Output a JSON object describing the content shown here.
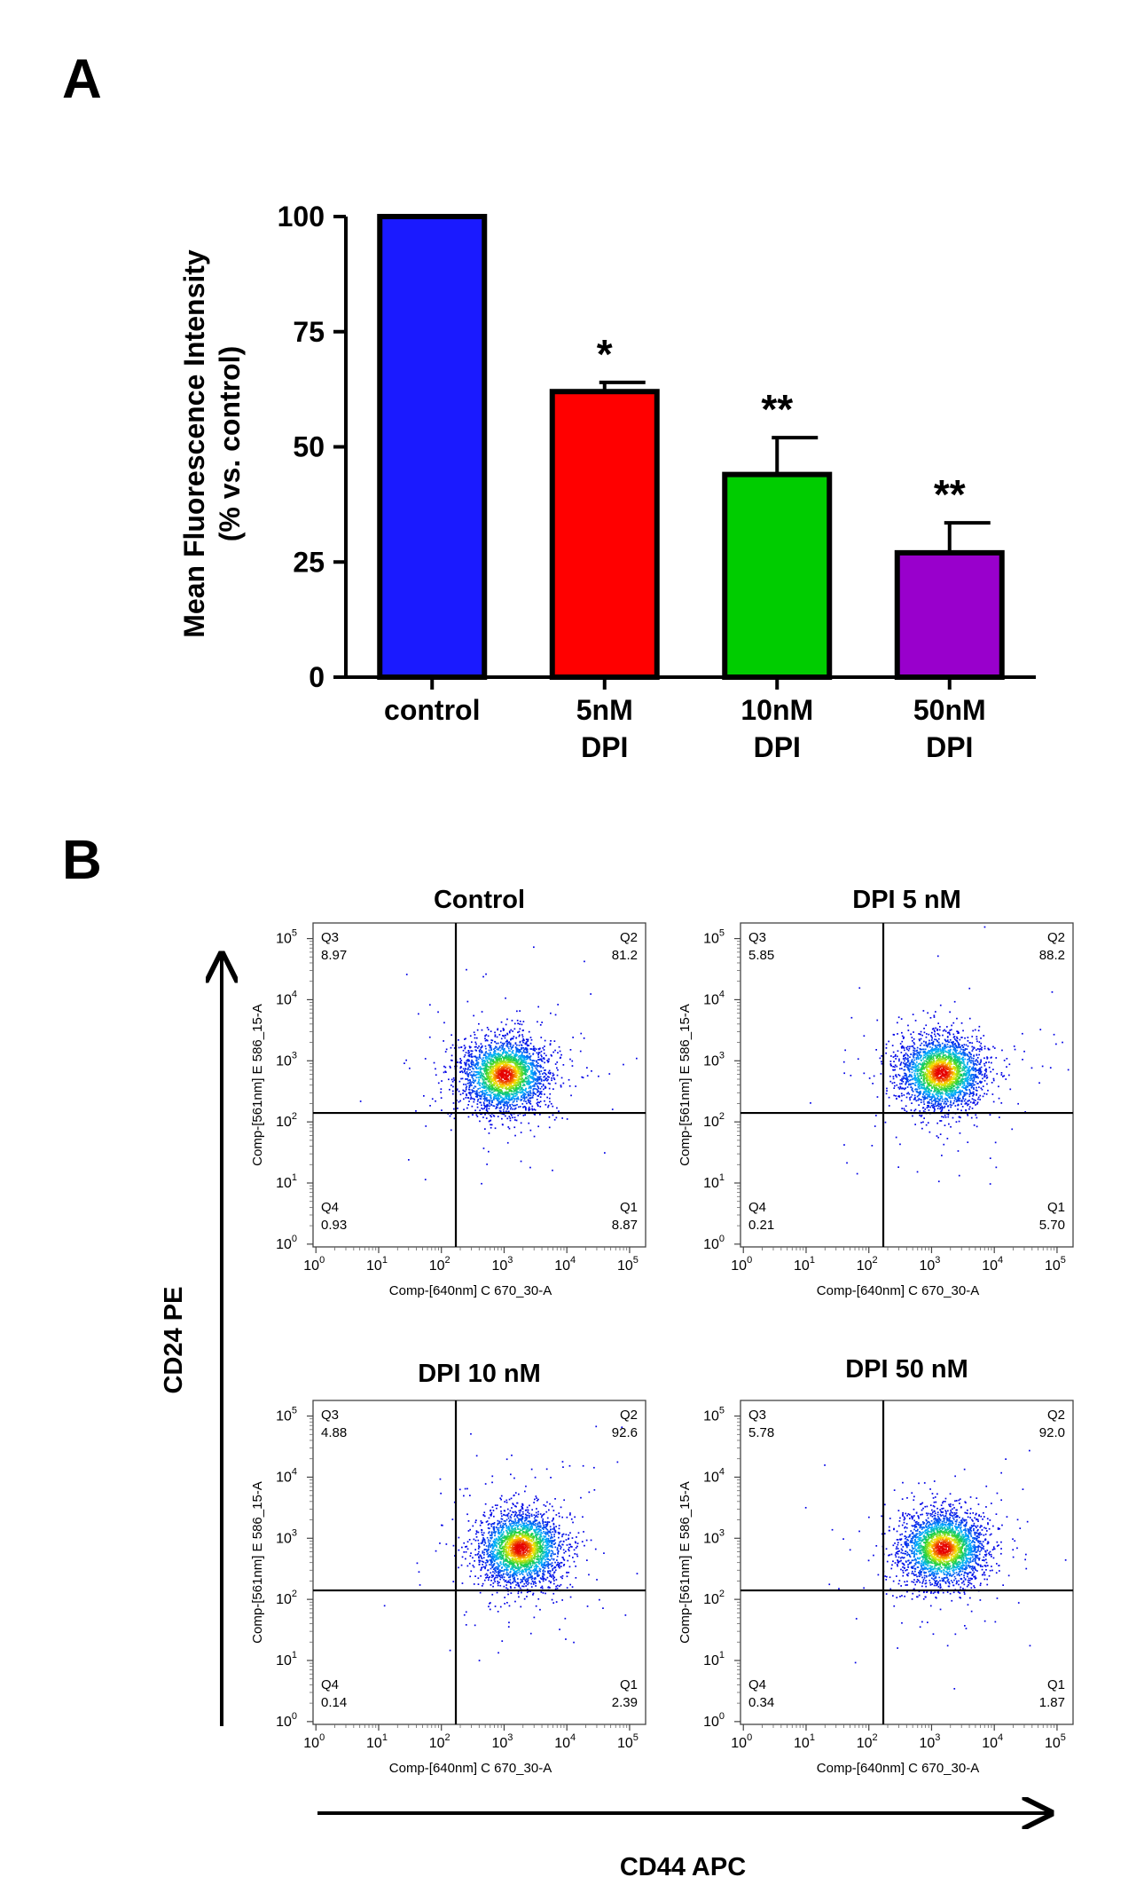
{
  "panels": {
    "a_label": "A",
    "b_label": "B"
  },
  "chart_data": [
    {
      "type": "bar",
      "categories": [
        [
          "control"
        ],
        [
          "5nM",
          "DPI"
        ],
        [
          "10nM",
          "DPI"
        ],
        [
          "50nM",
          "DPI"
        ]
      ],
      "values": [
        100,
        62,
        44,
        27
      ],
      "errors": [
        0,
        2,
        8,
        6.5
      ],
      "significance": [
        "",
        "*",
        "**",
        "**"
      ],
      "colors": [
        "#1a1aff",
        "#ff0000",
        "#00cc00",
        "#9900cc"
      ],
      "ylabel": [
        "Mean Fluorescence Intensity",
        "(% vs. control)"
      ],
      "ylim": [
        0,
        100
      ],
      "yticks": [
        0,
        25,
        50,
        75,
        100
      ],
      "grid": false
    },
    {
      "type": "scatter",
      "x_axis_title": "CD44 APC",
      "y_axis_title": "CD24 PE",
      "plot_xlabel": "Comp-[640nm] C 670_30-A",
      "plot_ylabel": "Comp-[561nm] E 586_15-A",
      "log_scale": true,
      "tick_exponents": [
        "0",
        "1",
        "2",
        "3",
        "4",
        "5"
      ],
      "tick_base": "10",
      "gate": {
        "x": 170,
        "y": 140
      },
      "plots": [
        {
          "title": "Control",
          "quadrants": [
            {
              "name": "Q3",
              "value": "8.97"
            },
            {
              "name": "Q2",
              "value": "81.2"
            },
            {
              "name": "Q4",
              "value": "0.93"
            },
            {
              "name": "Q1",
              "value": "8.87"
            }
          ],
          "center": [
            1000,
            600
          ]
        },
        {
          "title": "DPI 5 nM",
          "quadrants": [
            {
              "name": "Q3",
              "value": "5.85"
            },
            {
              "name": "Q2",
              "value": "88.2"
            },
            {
              "name": "Q4",
              "value": "0.21"
            },
            {
              "name": "Q1",
              "value": "5.70"
            }
          ],
          "center": [
            1400,
            650
          ]
        },
        {
          "title": "DPI 10 nM",
          "quadrants": [
            {
              "name": "Q3",
              "value": "4.88"
            },
            {
              "name": "Q2",
              "value": "92.6"
            },
            {
              "name": "Q4",
              "value": "0.14"
            },
            {
              "name": "Q1",
              "value": "2.39"
            }
          ],
          "center": [
            1800,
            700
          ]
        },
        {
          "title": "DPI 50 nM",
          "quadrants": [
            {
              "name": "Q3",
              "value": "5.78"
            },
            {
              "name": "Q2",
              "value": "92.0"
            },
            {
              "name": "Q4",
              "value": "0.34"
            },
            {
              "name": "Q1",
              "value": "1.87"
            }
          ],
          "center": [
            1500,
            700
          ]
        }
      ]
    }
  ]
}
